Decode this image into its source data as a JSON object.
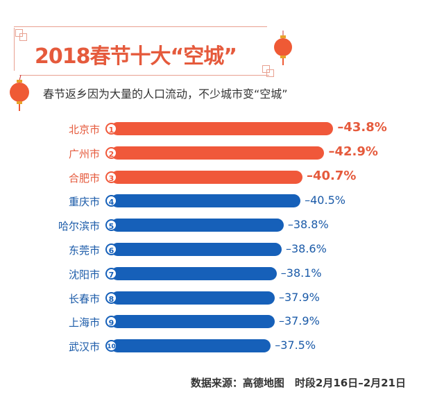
{
  "title": "2018春节十大“空城”",
  "subtitle": "春节返乡因为大量的人口流动，不少城市变“空城”",
  "footer": "数据来源：高德地图　时段2月16日–2月21日",
  "colors": {
    "top3": "#f0583a",
    "rest": "#1660b9",
    "label_top3": "#e55a3c",
    "label_rest": "#1a5aa8"
  },
  "chart_data": {
    "type": "bar",
    "orientation": "horizontal",
    "title": "2018春节十大“空城”",
    "categories": [
      "北京市",
      "广州市",
      "合肥市",
      "重庆市",
      "哈尔滨市",
      "东莞市",
      "沈阳市",
      "长春市",
      "上海市",
      "武汉市"
    ],
    "ranks": [
      "1",
      "2",
      "3",
      "4",
      "5",
      "6",
      "7",
      "8",
      "9",
      "10"
    ],
    "values": [
      -43.8,
      -42.9,
      -40.7,
      -40.5,
      -38.8,
      -38.6,
      -38.1,
      -37.9,
      -37.9,
      -37.5
    ],
    "value_labels": [
      "–43.8%",
      "–42.9%",
      "–40.7%",
      "–40.5%",
      "–38.8%",
      "–38.6%",
      "–38.1%",
      "–37.9%",
      "–37.9%",
      "–37.5%"
    ],
    "unit": "%",
    "highlight_top": 3,
    "grid": false
  }
}
